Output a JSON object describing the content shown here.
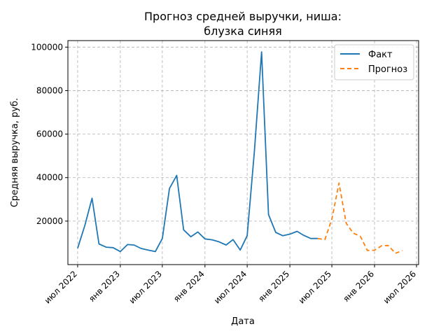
{
  "chart_data": {
    "type": "line",
    "title_line1": "Прогноз средней выручки, ниша:",
    "title_line2": "блузка синяя",
    "xlabel": "Дата",
    "ylabel": "Средняя выручка, руб.",
    "grid": true,
    "legend_position": "top-right",
    "xlim": [
      "2022-05-20",
      "2026-07-10"
    ],
    "ylim": [
      0,
      103000
    ],
    "x_ticks": [
      {
        "date": "2022-07-01",
        "label": "июл 2022"
      },
      {
        "date": "2023-01-01",
        "label": "янв 2023"
      },
      {
        "date": "2023-07-01",
        "label": "июл 2023"
      },
      {
        "date": "2024-01-01",
        "label": "янв 2024"
      },
      {
        "date": "2024-07-01",
        "label": "июл 2024"
      },
      {
        "date": "2025-01-01",
        "label": "янв 2025"
      },
      {
        "date": "2025-07-01",
        "label": "июл 2025"
      },
      {
        "date": "2026-01-01",
        "label": "янв 2026"
      },
      {
        "date": "2026-07-01",
        "label": "июл 2026"
      }
    ],
    "y_ticks": [
      {
        "value": 20000,
        "label": "20000"
      },
      {
        "value": 40000,
        "label": "40000"
      },
      {
        "value": 60000,
        "label": "60000"
      },
      {
        "value": 80000,
        "label": "80000"
      },
      {
        "value": 100000,
        "label": "100000"
      }
    ],
    "series": [
      {
        "name": "Факт",
        "color": "#1f77b4",
        "style": "solid",
        "points": [
          [
            "2022-07-01",
            7500
          ],
          [
            "2022-08-01",
            18000
          ],
          [
            "2022-09-01",
            30500
          ],
          [
            "2022-10-01",
            9500
          ],
          [
            "2022-11-01",
            8000
          ],
          [
            "2022-12-01",
            7800
          ],
          [
            "2023-01-01",
            6000
          ],
          [
            "2023-02-01",
            9200
          ],
          [
            "2023-03-01",
            9000
          ],
          [
            "2023-04-01",
            7400
          ],
          [
            "2023-05-01",
            6700
          ],
          [
            "2023-06-01",
            6000
          ],
          [
            "2023-07-01",
            12000
          ],
          [
            "2023-08-01",
            35000
          ],
          [
            "2023-09-01",
            41000
          ],
          [
            "2023-10-01",
            16000
          ],
          [
            "2023-11-01",
            12800
          ],
          [
            "2023-12-01",
            15000
          ],
          [
            "2024-01-01",
            11800
          ],
          [
            "2024-02-01",
            11400
          ],
          [
            "2024-03-01",
            10500
          ],
          [
            "2024-04-01",
            9000
          ],
          [
            "2024-05-01",
            11500
          ],
          [
            "2024-06-01",
            6700
          ],
          [
            "2024-07-01",
            13300
          ],
          [
            "2024-08-01",
            52000
          ],
          [
            "2024-09-01",
            97800
          ],
          [
            "2024-10-01",
            23000
          ],
          [
            "2024-11-01",
            14800
          ],
          [
            "2024-12-01",
            13300
          ],
          [
            "2025-01-01",
            14000
          ],
          [
            "2025-02-01",
            15300
          ],
          [
            "2025-03-01",
            13500
          ],
          [
            "2025-04-01",
            12000
          ],
          [
            "2025-05-01",
            12000
          ]
        ]
      },
      {
        "name": "Прогноз",
        "color": "#ff7f0e",
        "style": "dashed",
        "points": [
          [
            "2025-05-01",
            12000
          ],
          [
            "2025-06-01",
            11500
          ],
          [
            "2025-07-01",
            21000
          ],
          [
            "2025-08-01",
            37500
          ],
          [
            "2025-09-01",
            19000
          ],
          [
            "2025-10-01",
            14500
          ],
          [
            "2025-11-01",
            13000
          ],
          [
            "2025-12-01",
            6500
          ],
          [
            "2026-01-01",
            6600
          ],
          [
            "2026-02-01",
            8700
          ],
          [
            "2026-03-01",
            8800
          ],
          [
            "2026-04-01",
            5200
          ],
          [
            "2026-05-01",
            6400
          ]
        ]
      }
    ]
  }
}
